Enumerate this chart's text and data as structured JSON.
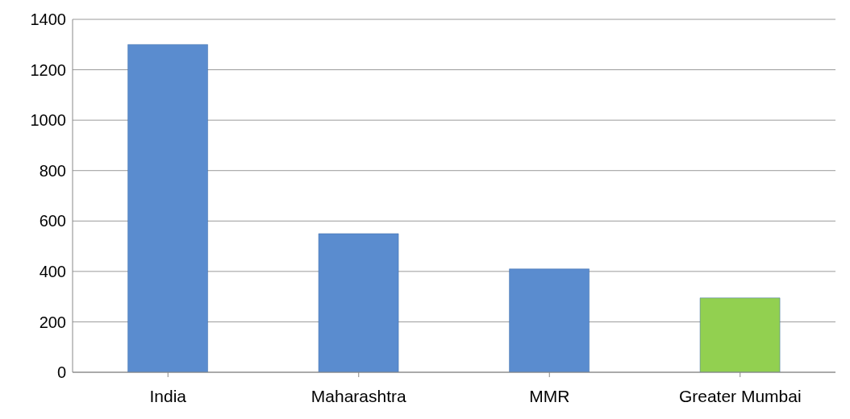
{
  "chart_data": {
    "type": "bar",
    "categories": [
      "India",
      "Maharashtra",
      "MMR",
      "Greater Mumbai"
    ],
    "values": [
      1300,
      550,
      410,
      295
    ],
    "colors": [
      "#5a8ccf",
      "#5a8ccf",
      "#5a8ccf",
      "#92d050"
    ],
    "ylim": [
      0,
      1400
    ],
    "yticks": [
      0,
      200,
      400,
      600,
      800,
      1000,
      1200,
      1400
    ],
    "grid": "y"
  }
}
